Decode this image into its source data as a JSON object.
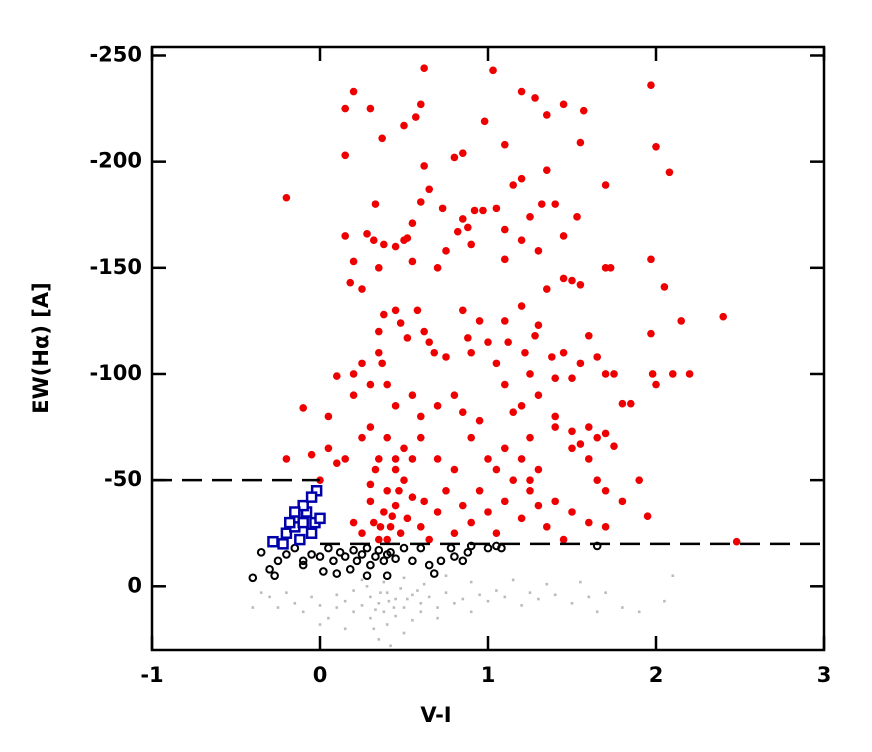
{
  "chart_data": {
    "type": "scatter",
    "xlabel": "V-I",
    "ylabel": "EW(Hα) [A]",
    "xlim": [
      -1,
      3
    ],
    "ylim": [
      30,
      -254
    ],
    "xticks": [
      -1,
      0,
      1,
      2,
      3
    ],
    "yticks": [
      -250,
      -200,
      -150,
      -100,
      -50,
      0
    ],
    "hlines": [
      {
        "y": -50,
        "xmin": -1,
        "xmax": 0
      },
      {
        "y": -20,
        "xmin": 0,
        "xmax": 3
      }
    ],
    "series": [
      {
        "color": "#bbbbbb",
        "marker": "dot",
        "x": [
          -0.3,
          -0.25,
          -0.2,
          -0.15,
          -0.1,
          -0.05,
          0,
          0.05,
          0.1,
          0.1,
          0.15,
          0.2,
          0.2,
          0.25,
          0.3,
          0.3,
          0.32,
          0.35,
          0.35,
          0.38,
          0.4,
          0.4,
          0.42,
          0.45,
          0.45,
          0.5,
          0.5,
          0.55,
          0.55,
          0.6,
          0.6,
          0.65,
          0.7,
          0.75,
          0.8,
          0.85,
          0.9,
          0.95,
          1.0,
          1.05,
          1.1,
          1.2,
          1.25,
          1.3,
          1.4,
          1.5,
          1.6,
          1.7,
          1.8,
          1.9,
          2.05,
          -0.4,
          0.0,
          0.15,
          0.25,
          0.38,
          0.5,
          0.62,
          0.75,
          0.9,
          1.15,
          1.35,
          1.55,
          1.65,
          2.1,
          0.28,
          0.48,
          0.7,
          0.36,
          0.41,
          0.44,
          0.33,
          0.52,
          0.58,
          -0.35
        ],
        "y": [
          5,
          10,
          3,
          8,
          12,
          5,
          9,
          15,
          4,
          10,
          7,
          12,
          2,
          9,
          5,
          15,
          20,
          8,
          25,
          12,
          3,
          18,
          28,
          6,
          14,
          10,
          22,
          4,
          16,
          8,
          12,
          5,
          10,
          3,
          8,
          6,
          12,
          4,
          7,
          2,
          5,
          9,
          3,
          6,
          4,
          8,
          5,
          3,
          10,
          12,
          7,
          10,
          18,
          20,
          -3,
          -2,
          -4,
          -1,
          -5,
          -2,
          -3,
          -1,
          -2,
          12,
          -5,
          0,
          1,
          15,
          3,
          7,
          10,
          11,
          6,
          2,
          3
        ]
      },
      {
        "color": "#000000",
        "marker": "circle-open",
        "x": [
          -0.4,
          -0.35,
          -0.3,
          -0.27,
          -0.25,
          -0.2,
          -0.15,
          -0.1,
          -0.05,
          0.0,
          0.02,
          0.05,
          0.08,
          0.1,
          0.12,
          0.15,
          0.18,
          0.2,
          0.22,
          0.25,
          0.28,
          0.3,
          0.33,
          0.35,
          0.38,
          0.4,
          0.42,
          0.45,
          0.5,
          0.55,
          0.6,
          0.65,
          0.68,
          0.72,
          0.78,
          0.8,
          0.85,
          0.88,
          0.9,
          1.0,
          1.05,
          1.08,
          1.65,
          0.28,
          0.4,
          -0.1
        ],
        "y": [
          -4,
          -16,
          -8,
          -5,
          -12,
          -15,
          -18,
          -12,
          -15,
          -14,
          -7,
          -18,
          -12,
          -6,
          -16,
          -14,
          -8,
          -17,
          -12,
          -15,
          -18,
          -10,
          -14,
          -17,
          -12,
          -15,
          -16,
          -13,
          -18,
          -12,
          -18,
          -10,
          -6,
          -12,
          -18,
          -14,
          -12,
          -16,
          -19,
          -18,
          -19,
          -18,
          -19,
          -5,
          -5,
          -10
        ]
      },
      {
        "color": "#0000aa",
        "marker": "square-open",
        "x": [
          -0.28,
          -0.22,
          -0.2,
          -0.15,
          -0.12,
          -0.1,
          -0.08,
          -0.05,
          -0.03,
          -0.02,
          0.0,
          -0.18,
          -0.1,
          -0.05,
          -0.15
        ],
        "y": [
          -21,
          -20,
          -25,
          -28,
          -22,
          -30,
          -35,
          -25,
          -30,
          -45,
          -32,
          -30,
          -38,
          -42,
          -35
        ]
      },
      {
        "color": "#ee0000",
        "marker": "circle-filled",
        "x": [
          -0.2,
          0.15,
          0.2,
          0.3,
          0.37,
          0.5,
          0.57,
          0.62,
          0.6,
          0.62,
          0.65,
          0.8,
          0.85,
          0.98,
          1.03,
          1.1,
          1.2,
          1.28,
          1.35,
          1.45,
          1.55,
          1.57,
          1.97,
          2.0,
          2.08,
          1.7,
          0.15,
          0.33,
          0.28,
          0.32,
          0.38,
          0.5,
          0.52,
          0.55,
          0.6,
          0.73,
          0.85,
          0.88,
          0.9,
          0.92,
          0.97,
          1.05,
          1.1,
          1.15,
          1.2,
          1.25,
          1.32,
          1.35,
          1.4,
          1.45,
          1.53,
          0.15,
          0.2,
          0.35,
          0.45,
          0.55,
          0.7,
          0.75,
          0.82,
          1.1,
          1.2,
          1.3,
          1.45,
          1.5,
          1.55,
          1.7,
          1.73,
          1.97,
          2.05,
          2.15,
          2.4,
          0.18,
          0.25,
          0.35,
          0.35,
          0.37,
          0.38,
          0.45,
          0.48,
          0.52,
          0.58,
          0.62,
          0.65,
          0.68,
          0.75,
          0.85,
          0.88,
          0.9,
          0.95,
          1.0,
          1.05,
          1.1,
          1.12,
          1.2,
          1.22,
          1.25,
          1.28,
          1.3,
          1.35,
          1.38,
          1.4,
          1.45,
          1.5,
          1.55,
          1.6,
          1.65,
          1.7,
          1.75,
          1.8,
          1.85,
          1.97,
          1.98,
          2.0,
          2.1,
          2.2,
          0.1,
          0.2,
          0.25,
          -0.1,
          0.05,
          0.2,
          0.3,
          0.4,
          0.45,
          0.55,
          0.6,
          0.7,
          0.8,
          0.85,
          0.95,
          1.1,
          1.15,
          1.2,
          1.3,
          1.4,
          1.5,
          1.6,
          1.65,
          1.7,
          1.75,
          -0.2,
          -0.05,
          0.05,
          0.1,
          0.15,
          0.0,
          0.25,
          0.3,
          0.35,
          0.4,
          0.45,
          0.5,
          0.55,
          0.6,
          0.7,
          0.8,
          0.9,
          1.0,
          1.05,
          1.1,
          1.2,
          1.25,
          1.3,
          1.4,
          1.5,
          1.55,
          1.6,
          1.65,
          1.7,
          1.8,
          1.9,
          1.95,
          2.48,
          0.2,
          0.25,
          0.3,
          0.32,
          0.35,
          0.38,
          0.4,
          0.42,
          0.45,
          0.48,
          0.5,
          0.52,
          0.55,
          0.6,
          0.62,
          0.65,
          0.7,
          0.75,
          0.8,
          0.85,
          0.9,
          0.95,
          1.0,
          1.05,
          1.1,
          1.15,
          1.2,
          1.25,
          1.3,
          1.35,
          1.4,
          1.45,
          1.5,
          1.6,
          1.7,
          1.25,
          0.3,
          0.33,
          0.4,
          0.45,
          0.36,
          0.43,
          0.47
        ],
        "y": [
          -183,
          -225,
          -233,
          -225,
          -211,
          -217,
          -221,
          -244,
          -227,
          -198,
          -187,
          -202,
          -204,
          -219,
          -243,
          -208,
          -233,
          -230,
          -222,
          -227,
          -209,
          -224,
          -236,
          -207,
          -195,
          -189,
          -203,
          -180,
          -166,
          -163,
          -161,
          -163,
          -164,
          -171,
          -181,
          -178,
          -173,
          -169,
          -161,
          -177,
          -177,
          -178,
          -168,
          -189,
          -192,
          -174,
          -180,
          -196,
          -180,
          -165,
          -174,
          -165,
          -153,
          -150,
          -160,
          -153,
          -150,
          -158,
          -167,
          -154,
          -163,
          -158,
          -145,
          -144,
          -142,
          -150,
          -150,
          -154,
          -141,
          -125,
          -127,
          -143,
          -140,
          -120,
          -110,
          -105,
          -128,
          -130,
          -124,
          -117,
          -130,
          -120,
          -115,
          -110,
          -108,
          -130,
          -117,
          -110,
          -125,
          -115,
          -105,
          -125,
          -115,
          -132,
          -110,
          -100,
          -118,
          -123,
          -140,
          -108,
          -98,
          -110,
          -98,
          -105,
          -118,
          -108,
          -100,
          -100,
          -86,
          -86,
          -119,
          -100,
          -95,
          -100,
          -100,
          -99,
          -100,
          -105,
          -84,
          -80,
          -90,
          -95,
          -95,
          -85,
          -90,
          -80,
          -85,
          -90,
          -82,
          -78,
          -95,
          -82,
          -85,
          -90,
          -80,
          -73,
          -75,
          -70,
          -72,
          -66,
          -60,
          -62,
          -65,
          -58,
          -60,
          -50,
          -70,
          -75,
          -60,
          -70,
          -55,
          -65,
          -60,
          -70,
          -60,
          -55,
          -70,
          -60,
          -55,
          -65,
          -60,
          -50,
          -55,
          -75,
          -65,
          -67,
          -60,
          -50,
          -45,
          -40,
          -50,
          -33,
          -21,
          -30,
          -25,
          -40,
          -30,
          -22,
          -35,
          -45,
          -28,
          -38,
          -25,
          -50,
          -32,
          -42,
          -28,
          -40,
          -22,
          -35,
          -45,
          -25,
          -38,
          -30,
          -45,
          -35,
          -25,
          -40,
          -50,
          -32,
          -45,
          -38,
          -28,
          -40,
          -22,
          -35,
          -30,
          -28,
          -70,
          -48,
          -55,
          -22,
          -60,
          -28,
          -33,
          -45
        ]
      }
    ]
  }
}
